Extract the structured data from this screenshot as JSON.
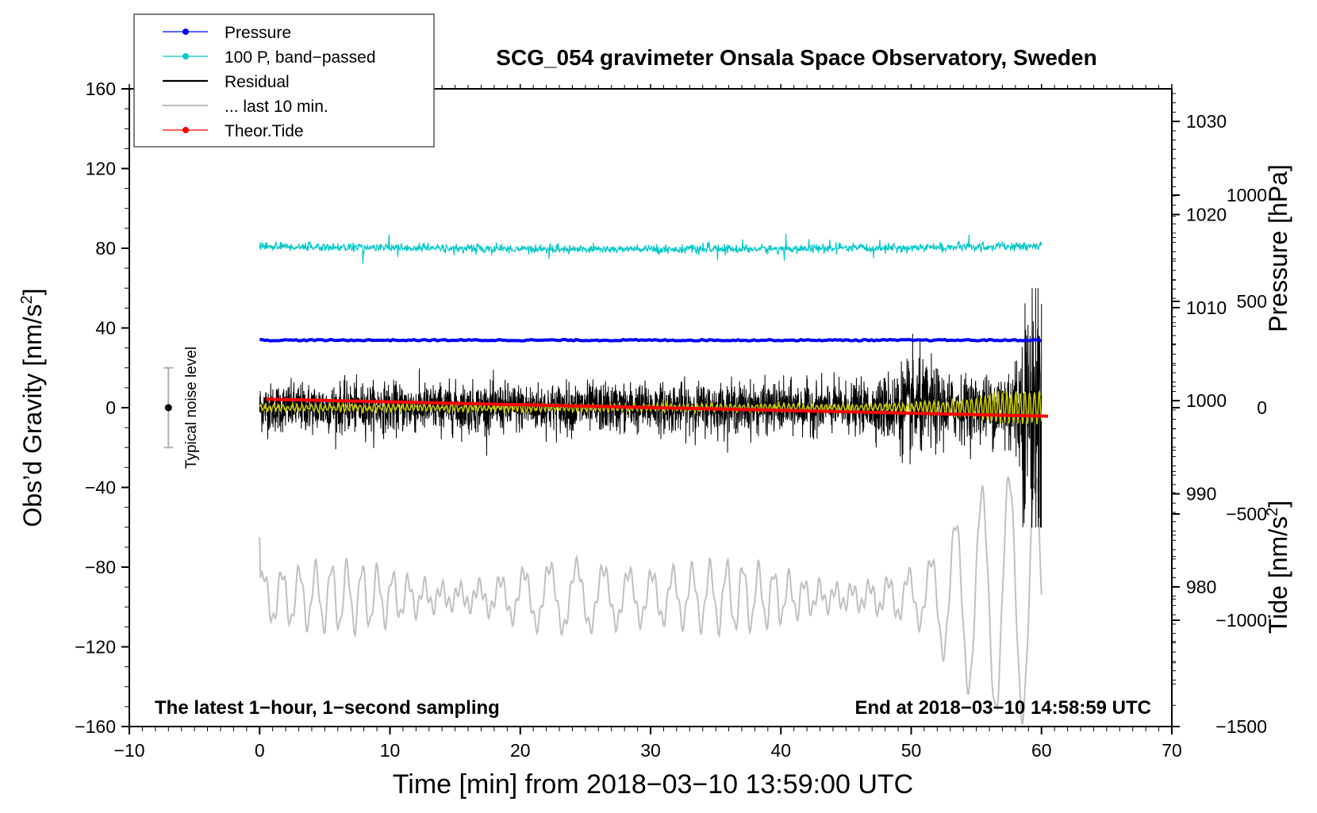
{
  "chart_data": {
    "type": "line",
    "title": "SCG_054 gravimeter Onsala Space Observatory, Sweden",
    "xlabel": "Time [min] from 2018−03−10 13:59:00 UTC",
    "ylabel_main": "Obs’d Gravity [nm/s",
    "ylabel_main_sup": "2",
    "ylabel_main_tail": "]",
    "ylabel_pressure": "Pressure [hPa]",
    "ylabel_tide": "Tide [nm/s",
    "ylabel_tide_sup": "2",
    "ylabel_tide_tail": "]",
    "xlim": [
      -10,
      70
    ],
    "ylim": [
      -160,
      160
    ],
    "pressure_lim": [
      965,
      1033.5
    ],
    "tide_lim": [
      -1500,
      1500
    ],
    "x_ticks": [
      -10,
      0,
      10,
      20,
      30,
      40,
      50,
      60,
      70
    ],
    "x_tick_labels": [
      "−10",
      "0",
      "10",
      "20",
      "30",
      "40",
      "50",
      "60",
      "70"
    ],
    "y_ticks": [
      -160,
      -120,
      -80,
      -40,
      0,
      40,
      80,
      120,
      160
    ],
    "y_tick_labels": [
      "−160",
      "−120",
      "−80",
      "−40",
      "0",
      "40",
      "80",
      "120",
      "160"
    ],
    "pressure_ticks": [
      980,
      990,
      1000,
      1010,
      1020,
      1030
    ],
    "pressure_tick_labels": [
      "980",
      "990",
      "1000",
      "1010",
      "1020",
      "1030"
    ],
    "tide_ticks": [
      -1500,
      -1000,
      -500,
      0,
      500,
      1000
    ],
    "tide_tick_labels": [
      "−1500",
      "−1000",
      "−500",
      "0",
      "500",
      "1000"
    ],
    "annotations": {
      "bottom_left": "The latest 1−hour, 1−second sampling",
      "bottom_right": "End at 2018−03−10 14:58:59 UTC",
      "noise_label": "Typical noise level"
    },
    "noise_bar": {
      "x": -7,
      "center": 0,
      "half_range": 20
    },
    "legend": {
      "position": "top-left",
      "entries": [
        {
          "label": "Pressure",
          "color": "#0000ff",
          "style": "line-dot"
        },
        {
          "label": "100 P, band−passed",
          "color": "#00c8c8",
          "style": "line-dot"
        },
        {
          "label": "Residual",
          "color": "#000000",
          "style": "line"
        },
        {
          "label": "... last 10 min.",
          "color": "#c0c0c0",
          "style": "line"
        },
        {
          "label": "Theor.Tide",
          "color": "#ff0000",
          "style": "line-dot"
        }
      ]
    },
    "series": [
      {
        "name": "Pressure",
        "axis": "pressure",
        "color": "#0000ff",
        "x_range": [
          0,
          60
        ],
        "start": 1006.5,
        "end": 1006.5,
        "noise": 0.15
      },
      {
        "name": "100 P, band−passed",
        "axis": "main",
        "color": "#00c8c8",
        "x_range": [
          0,
          60
        ],
        "mean": 81,
        "amplitude": 3
      },
      {
        "name": "Residual",
        "axis": "main",
        "color": "#000000",
        "x_range": [
          0,
          60
        ],
        "mean": 0,
        "typical_amplitude": 12,
        "max_amplitude": 60
      },
      {
        "name": "Residual smoothed",
        "axis": "main",
        "color": "#c8c800",
        "x_range": [
          0,
          60
        ],
        "mean": 0,
        "typical_amplitude": 1.5,
        "max_amplitude": 8
      },
      {
        "name": "... last 10 min.",
        "axis": "main",
        "color": "#c0c0c0",
        "x_range": [
          0,
          60
        ],
        "mean": -95,
        "typical_amplitude": 15,
        "max_amplitude": 60
      },
      {
        "name": "Theor.Tide",
        "axis": "tide",
        "color": "#ff0000",
        "x_range": [
          0.5,
          60.5
        ],
        "start": 40,
        "end": -40
      }
    ]
  },
  "colors": {
    "pressure": "#0000ff",
    "bandpassed": "#00c8c8",
    "residual": "#000000",
    "residual_smooth": "#c8c800",
    "last10": "#c0c0c0",
    "tide": "#ff0000"
  }
}
